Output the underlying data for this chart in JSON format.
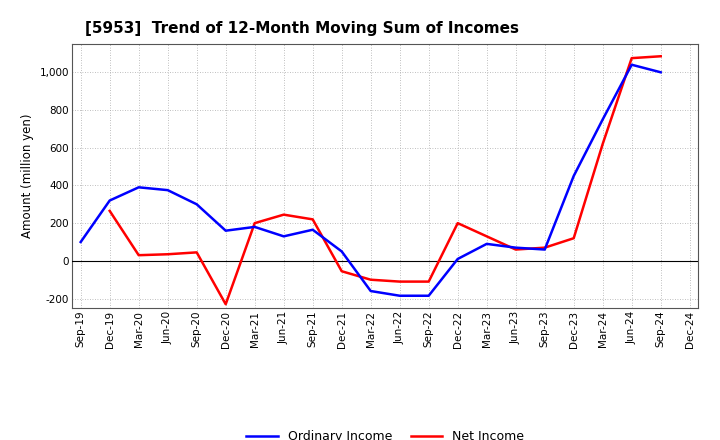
{
  "title": "[5953]  Trend of 12-Month Moving Sum of Incomes",
  "ylabel": "Amount (million yen)",
  "xlabels": [
    "Sep-19",
    "Dec-19",
    "Mar-20",
    "Jun-20",
    "Sep-20",
    "Dec-20",
    "Mar-21",
    "Jun-21",
    "Sep-21",
    "Dec-21",
    "Mar-22",
    "Jun-22",
    "Sep-22",
    "Dec-22",
    "Mar-23",
    "Jun-23",
    "Sep-23",
    "Dec-23",
    "Mar-24",
    "Jun-24",
    "Sep-24",
    "Dec-24"
  ],
  "ordinary_income": [
    100,
    320,
    390,
    375,
    300,
    160,
    180,
    130,
    165,
    50,
    -160,
    -185,
    -185,
    10,
    90,
    70,
    60,
    450,
    750,
    1040,
    1000,
    null
  ],
  "net_income": [
    null,
    265,
    30,
    35,
    45,
    -230,
    200,
    245,
    220,
    -55,
    -100,
    -110,
    -110,
    200,
    130,
    60,
    70,
    120,
    620,
    1075,
    1085,
    null
  ],
  "ylim": [
    -250,
    1150
  ],
  "yticks": [
    -200,
    0,
    200,
    400,
    600,
    800,
    1000
  ],
  "ordinary_income_color": "#0000ff",
  "net_income_color": "#ff0000",
  "grid_color": "#aaaaaa",
  "bg_color": "#ffffff",
  "legend_ordinary": "Ordinary Income",
  "legend_net": "Net Income",
  "line_width": 1.8,
  "title_fontsize": 11,
  "ylabel_fontsize": 8.5,
  "tick_fontsize": 7.5,
  "legend_fontsize": 9
}
